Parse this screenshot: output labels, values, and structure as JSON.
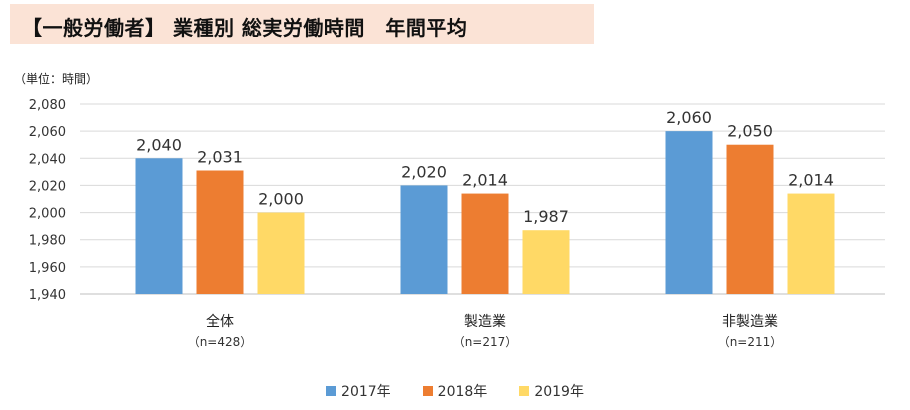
{
  "header": {
    "title": "【一般労働者】 業種別 総実労働時間　年間平均"
  },
  "chart_data": {
    "type": "bar",
    "unit_label": "（単位：時間）",
    "categories": [
      {
        "label": "全体",
        "sub": "（n=428）"
      },
      {
        "label": "製造業",
        "sub": "（n=217）"
      },
      {
        "label": "非製造業",
        "sub": "（n=211）"
      }
    ],
    "series": [
      {
        "name": "2017年",
        "color": "#5b9bd5",
        "values": [
          2040,
          2020,
          2060
        ]
      },
      {
        "name": "2018年",
        "color": "#ed7d31",
        "values": [
          2031,
          2014,
          2050
        ]
      },
      {
        "name": "2019年",
        "color": "#ffd966",
        "values": [
          2000,
          1987,
          2014
        ]
      }
    ],
    "ylim": [
      1940,
      2080
    ],
    "yticks": [
      "2,080",
      "2,060",
      "2,040",
      "2,020",
      "2,000",
      "1,980",
      "1,960",
      "1,940"
    ],
    "grid": true,
    "legend_position": "bottom"
  }
}
